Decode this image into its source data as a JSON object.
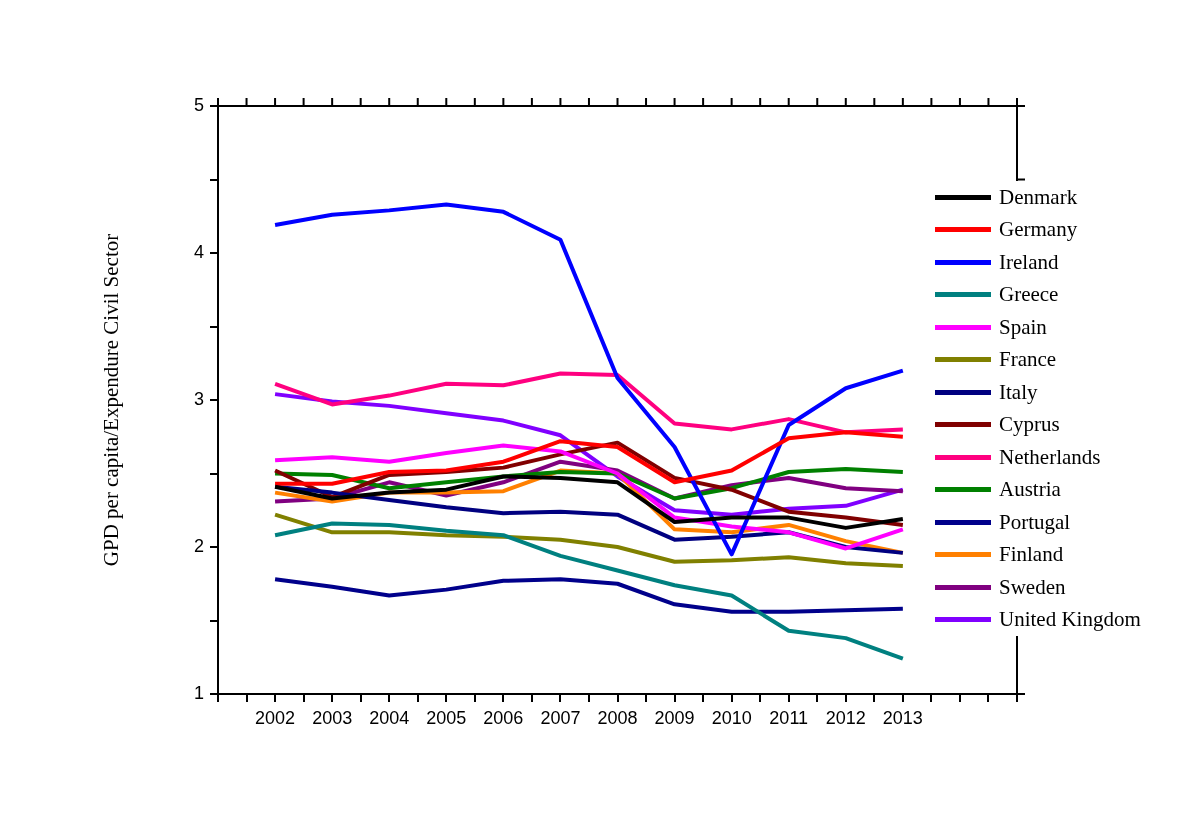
{
  "chart_data": {
    "type": "line",
    "ylabel": "GPD per capita/Expendure Civil Sector",
    "legend": "right",
    "grid": false,
    "marker": "none",
    "line_style": "solid",
    "xlim": [
      2001,
      2015
    ],
    "xticks": [
      {
        "value": 2001,
        "label": null
      },
      {
        "value": 2001.5,
        "label": null
      },
      2002,
      {
        "value": 2002.5,
        "label": null
      },
      2003,
      {
        "value": 2003.5,
        "label": null
      },
      2004,
      {
        "value": 2004.5,
        "label": null
      },
      2005,
      {
        "value": 2005.5,
        "label": null
      },
      2006,
      {
        "value": 2006.5,
        "label": null
      },
      2007,
      {
        "value": 2007.5,
        "label": null
      },
      2008,
      {
        "value": 2008.5,
        "label": null
      },
      2009,
      {
        "value": 2009.5,
        "label": null
      },
      2010,
      {
        "value": 2010.5,
        "label": null
      },
      2011,
      {
        "value": 2011.5,
        "label": null
      },
      2012,
      {
        "value": 2012.5,
        "label": null
      },
      2013,
      {
        "value": 2013.5,
        "label": null
      },
      {
        "value": 2014,
        "label": null
      },
      {
        "value": 2014.5,
        "label": null
      },
      {
        "value": 2015,
        "label": null
      }
    ],
    "ylim": [
      1,
      5
    ],
    "yticks": [
      1,
      {
        "value": 1.5,
        "label": null
      },
      2,
      {
        "value": 2.5,
        "label": null
      },
      3,
      {
        "value": 3.5,
        "label": null
      },
      4,
      {
        "value": 4.5,
        "label": null
      },
      5
    ],
    "x": [
      2002,
      2003,
      2004,
      2005,
      2006,
      2007,
      2008,
      2009,
      2010,
      2011,
      2012,
      2013
    ],
    "series": [
      {
        "name": "Denmark",
        "color": "#000000",
        "values": [
          2.41,
          2.33,
          2.37,
          2.39,
          2.48,
          2.47,
          2.44,
          2.17,
          2.2,
          2.2,
          2.13,
          2.19
        ]
      },
      {
        "name": "Germany",
        "color": "#ff0000",
        "values": [
          2.43,
          2.43,
          2.51,
          2.52,
          2.58,
          2.72,
          2.68,
          2.44,
          2.52,
          2.74,
          2.78,
          2.75
        ]
      },
      {
        "name": "Ireland",
        "color": "#0000ff",
        "values": [
          4.19,
          4.26,
          4.29,
          4.33,
          4.28,
          4.09,
          3.15,
          2.68,
          1.95,
          2.83,
          3.08,
          3.2
        ]
      },
      {
        "name": "Greece",
        "color": "#008080",
        "values": [
          2.08,
          2.16,
          2.15,
          2.11,
          2.08,
          1.94,
          1.84,
          1.74,
          1.67,
          1.43,
          1.38,
          1.24
        ]
      },
      {
        "name": "Spain",
        "color": "#ff00ff",
        "values": [
          2.59,
          2.61,
          2.58,
          2.64,
          2.69,
          2.65,
          2.5,
          2.2,
          2.14,
          2.1,
          1.99,
          2.12
        ]
      },
      {
        "name": "France",
        "color": "#808000",
        "values": [
          2.22,
          2.1,
          2.1,
          2.08,
          2.07,
          2.05,
          2,
          1.9,
          1.91,
          1.93,
          1.89,
          1.87
        ]
      },
      {
        "name": "Italy",
        "color": "#000080",
        "values": [
          2.41,
          2.37,
          2.32,
          2.27,
          2.23,
          2.24,
          2.22,
          2.05,
          2.07,
          2.1,
          2,
          1.96
        ]
      },
      {
        "name": "Cyprus",
        "color": "#800000",
        "values": [
          2.52,
          2.34,
          2.49,
          2.51,
          2.54,
          2.63,
          2.71,
          2.47,
          2.39,
          2.24,
          2.2,
          2.15
        ]
      },
      {
        "name": "Netherlands",
        "color": "#ff0080",
        "values": [
          3.11,
          2.97,
          3.03,
          3.11,
          3.1,
          3.18,
          3.17,
          2.84,
          2.8,
          2.87,
          2.78,
          2.8
        ]
      },
      {
        "name": "Austria",
        "color": "#008000",
        "values": [
          2.5,
          2.49,
          2.4,
          2.44,
          2.48,
          2.51,
          2.5,
          2.33,
          2.4,
          2.51,
          2.53,
          2.51
        ]
      },
      {
        "name": "Portugal",
        "color": "#00008b",
        "values": [
          1.78,
          1.73,
          1.67,
          1.71,
          1.77,
          1.78,
          1.75,
          1.61,
          1.56,
          1.56,
          1.57,
          1.58
        ]
      },
      {
        "name": "Finland",
        "color": "#ff8000",
        "values": [
          2.37,
          2.31,
          2.37,
          2.37,
          2.38,
          2.52,
          2.5,
          2.12,
          2.1,
          2.15,
          2.04,
          1.96
        ]
      },
      {
        "name": "Sweden",
        "color": "#800080",
        "values": [
          2.31,
          2.33,
          2.44,
          2.35,
          2.44,
          2.58,
          2.52,
          2.33,
          2.42,
          2.47,
          2.4,
          2.38
        ]
      },
      {
        "name": "United Kingdom",
        "color": "#8000ff",
        "values": [
          3.04,
          2.99,
          2.96,
          2.91,
          2.86,
          2.76,
          2.48,
          2.25,
          2.22,
          2.26,
          2.28,
          2.39
        ]
      }
    ]
  }
}
